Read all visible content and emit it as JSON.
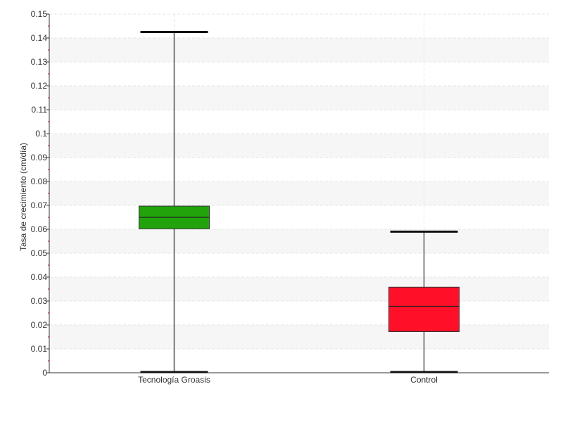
{
  "chart_data": {
    "type": "boxplot",
    "title": "",
    "xlabel": "",
    "ylabel": "Tasa de crecimiento (cm/día)",
    "ylim": [
      0,
      0.15
    ],
    "yticks": [
      "0",
      "0.01",
      "0.02",
      "0.03",
      "0.04",
      "0.05",
      "0.06",
      "0.07",
      "0.08",
      "0.09",
      "0.1",
      "0.11",
      "0.12",
      "0.13",
      "0.14",
      "0.15"
    ],
    "grid": true,
    "categories": [
      "Tecnología Groasis",
      "Control"
    ],
    "boxes": [
      {
        "category": "Tecnología Groasis",
        "min": 0.0003,
        "q1": 0.0602,
        "median": 0.065,
        "q3": 0.0697,
        "max": 0.1425,
        "color": "#22a30c"
      },
      {
        "category": "Control",
        "min": 0.0003,
        "q1": 0.0172,
        "median": 0.0278,
        "q3": 0.0358,
        "max": 0.059,
        "color": "#ff1028"
      }
    ]
  }
}
